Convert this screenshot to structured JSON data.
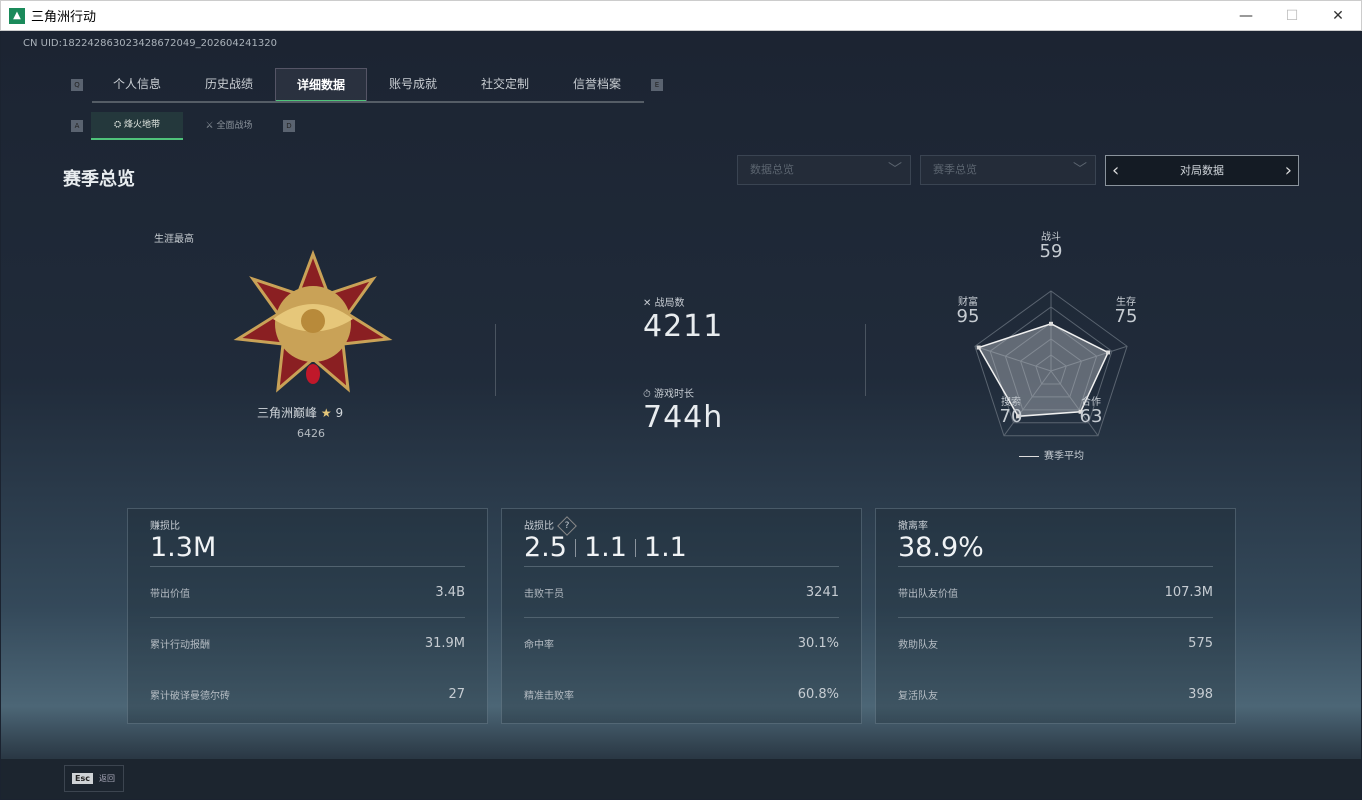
{
  "window": {
    "title": "三角洲行动",
    "minimize": "—",
    "maximize": "☐",
    "close": "✕"
  },
  "uid": "CN UID:1822428630234286720­49_202604241320",
  "tabs": {
    "key_left": "Q",
    "key_right": "E",
    "items": [
      "个人信息",
      "历史战绩",
      "详细数据",
      "账号成就",
      "社交定制",
      "信誉档案"
    ],
    "active": 2
  },
  "subtabs": {
    "key_left": "A",
    "key_right": "D",
    "items": [
      "烽火地带",
      "全面战场"
    ],
    "active": 0
  },
  "section_title": "赛季总览",
  "filters": {
    "data_scope": "数据总览",
    "season": "赛季总览",
    "nav_label": "对局数据"
  },
  "career": {
    "label": "生涯最高",
    "rank_name": "三角洲巅峰",
    "stars": "9",
    "points": "6426"
  },
  "stats": {
    "matches_label": "战局数",
    "matches": "4211",
    "playtime_label": "游戏时长",
    "playtime": "744h"
  },
  "radar": {
    "axes": [
      {
        "label": "战斗",
        "value": 59
      },
      {
        "label": "生存",
        "value": 75
      },
      {
        "label": "合作",
        "value": 63
      },
      {
        "label": "搜索",
        "value": 70
      },
      {
        "label": "财富",
        "value": 95
      }
    ],
    "legend": "赛季平均",
    "max": 100
  },
  "cards": [
    {
      "title": "赚损比",
      "big": [
        "1.3M"
      ],
      "rows": [
        {
          "k": "带出价值",
          "v": "3.4B"
        },
        {
          "k": "累计行动报酬",
          "v": "31.9M"
        },
        {
          "k": "累计破译曼德尔砖",
          "v": "27"
        }
      ]
    },
    {
      "title": "战损比",
      "help": "?",
      "big": [
        "2.5",
        "1.1",
        "1.1"
      ],
      "rows": [
        {
          "k": "击败干员",
          "v": "3241"
        },
        {
          "k": "命中率",
          "v": "30.1%"
        },
        {
          "k": "精准击败率",
          "v": "60.8%"
        }
      ]
    },
    {
      "title": "撤离率",
      "big": [
        "38.9%"
      ],
      "rows": [
        {
          "k": "带出队友价值",
          "v": "107.3M"
        },
        {
          "k": "救助队友",
          "v": "575"
        },
        {
          "k": "复活队友",
          "v": "398"
        }
      ]
    }
  ],
  "footer": {
    "esc_key": "Esc",
    "back": "返回"
  },
  "colors": {
    "accent": "#4fc37a"
  }
}
